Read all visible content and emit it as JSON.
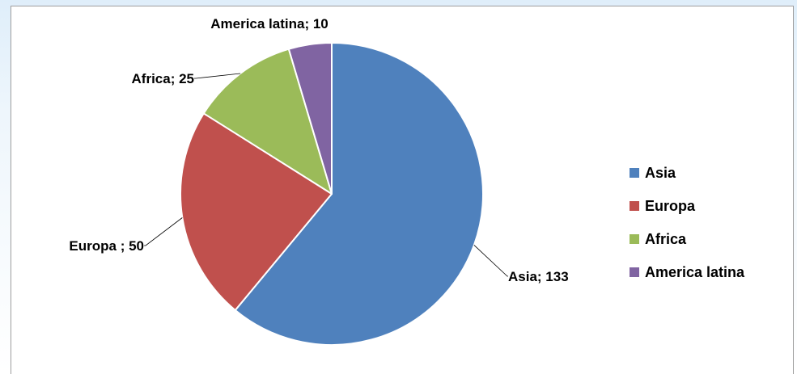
{
  "chart_data": {
    "type": "pie",
    "title": "",
    "categories": [
      "Asia",
      "Europa",
      "Africa",
      "America latina"
    ],
    "values": [
      133,
      50,
      25,
      10
    ],
    "colors": [
      "#4f81bd",
      "#c0504d",
      "#9bbb59",
      "#8064a2"
    ],
    "data_labels": [
      "Asia; 133",
      "Europa ; 50",
      "Africa; 25",
      "America latina; 10"
    ],
    "start_angle": "12 o'clock, clockwise",
    "legend": {
      "position": "right",
      "entries": [
        "Asia",
        "Europa",
        "Africa",
        "America latina"
      ]
    }
  }
}
